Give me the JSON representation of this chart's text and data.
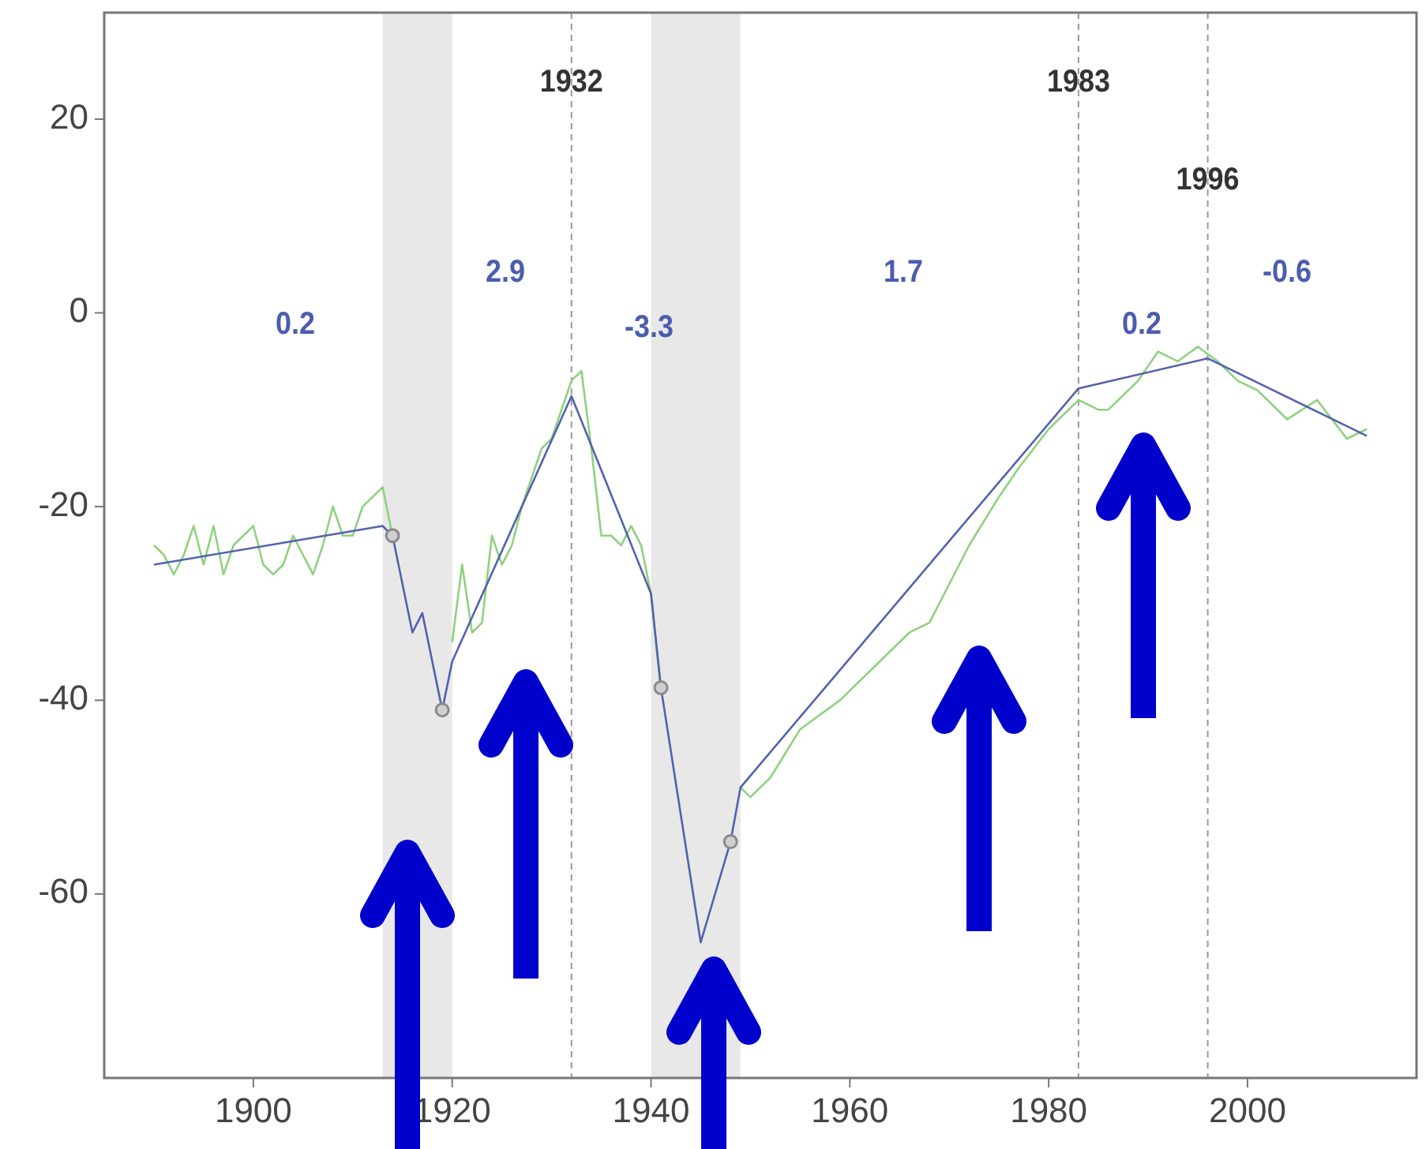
{
  "chart_data": {
    "type": "line",
    "xlim": [
      1885,
      2017
    ],
    "ylim": [
      -79,
      31
    ],
    "xticks": [
      1900,
      1920,
      1940,
      1960,
      1980,
      2000
    ],
    "yticks": [
      20,
      0,
      -20,
      -40,
      -60
    ],
    "series": [
      {
        "color": "#8fd17f",
        "x": [
          1890,
          1891,
          1892,
          1893,
          1894,
          1895,
          1896,
          1897,
          1898,
          1899,
          1900,
          1901,
          1902,
          1903,
          1904,
          1905,
          1906,
          1907,
          1908,
          1909,
          1910,
          1911,
          1912,
          1913,
          1914
        ],
        "values": [
          -24,
          -25,
          -27,
          -25,
          -22,
          -26,
          -22,
          -27,
          -24,
          -23,
          -22,
          -26,
          -27,
          -26,
          -23,
          -25,
          -27,
          -24,
          -20,
          -23,
          -23,
          -20,
          -19,
          -18,
          -23
        ]
      },
      {
        "color": "#8fd17f",
        "x": [
          1920,
          1921,
          1922,
          1923,
          1924,
          1925,
          1926,
          1927,
          1928,
          1929,
          1930,
          1931,
          1932,
          1933,
          1934,
          1935,
          1936,
          1937,
          1938,
          1939,
          1940,
          1941
        ],
        "values": [
          -34,
          -26,
          -33,
          -32,
          -23,
          -26,
          -24,
          -20,
          -17,
          -14,
          -13,
          -10,
          -7,
          -6,
          -14,
          -23,
          -23,
          -24,
          -22,
          -24,
          -29,
          -39
        ]
      },
      {
        "color": "#8fd17f",
        "x": [
          1949,
          1950,
          1952,
          1955,
          1959,
          1963,
          1966,
          1968,
          1972,
          1975,
          1977,
          1980,
          1983,
          1985,
          1986,
          1989,
          1991,
          1993,
          1995,
          1997,
          1999,
          2001,
          2004,
          2007,
          2010,
          2012
        ],
        "values": [
          -49,
          -50,
          -48,
          -43,
          -40,
          -36,
          -33,
          -32,
          -24,
          -19,
          -16,
          -12,
          -9,
          -10,
          -10,
          -7,
          -4,
          -5,
          -3.5,
          -5,
          -7,
          -8,
          -11,
          -9,
          -13,
          -12
        ]
      },
      {
        "color": "#5262ad",
        "x": [
          1890,
          1913,
          1914,
          1916,
          1917,
          1919,
          1920,
          1932,
          1940,
          1941,
          1945,
          1948,
          1949,
          1983,
          1996,
          2012
        ],
        "values": [
          -26,
          -22,
          -23,
          -33,
          -31,
          -41,
          -36,
          -8.6,
          -29,
          -38.7,
          -65,
          -54.6,
          -49,
          -7.8,
          -4.7,
          -12.7
        ]
      },
      {
        "type": "scatter",
        "marker": "circle",
        "color": "#8a8a8a",
        "x": [
          1914,
          1919,
          1941,
          1948
        ],
        "values": [
          -23,
          -41,
          -38.7,
          -54.6
        ]
      }
    ],
    "bands": [
      {
        "axis": "x",
        "from": 1913,
        "to": 1920,
        "color": "#e8e8e8"
      },
      {
        "axis": "x",
        "from": 1940,
        "to": 1949,
        "color": "#e8e8e8"
      }
    ],
    "ref_lines": [
      {
        "axis": "x",
        "value": 1932,
        "label": "1932",
        "line_style": "dashed",
        "color": "#999999"
      },
      {
        "axis": "x",
        "value": 1983,
        "label": "1983",
        "line_style": "dashed",
        "color": "#999999"
      },
      {
        "axis": "x",
        "value": 1996,
        "label": "1996",
        "line_style": "dashed",
        "color": "#999999"
      }
    ],
    "annotations": [
      "0.2",
      "2.9",
      "-3.3",
      "1.7",
      "0.2",
      "-0.6"
    ]
  }
}
